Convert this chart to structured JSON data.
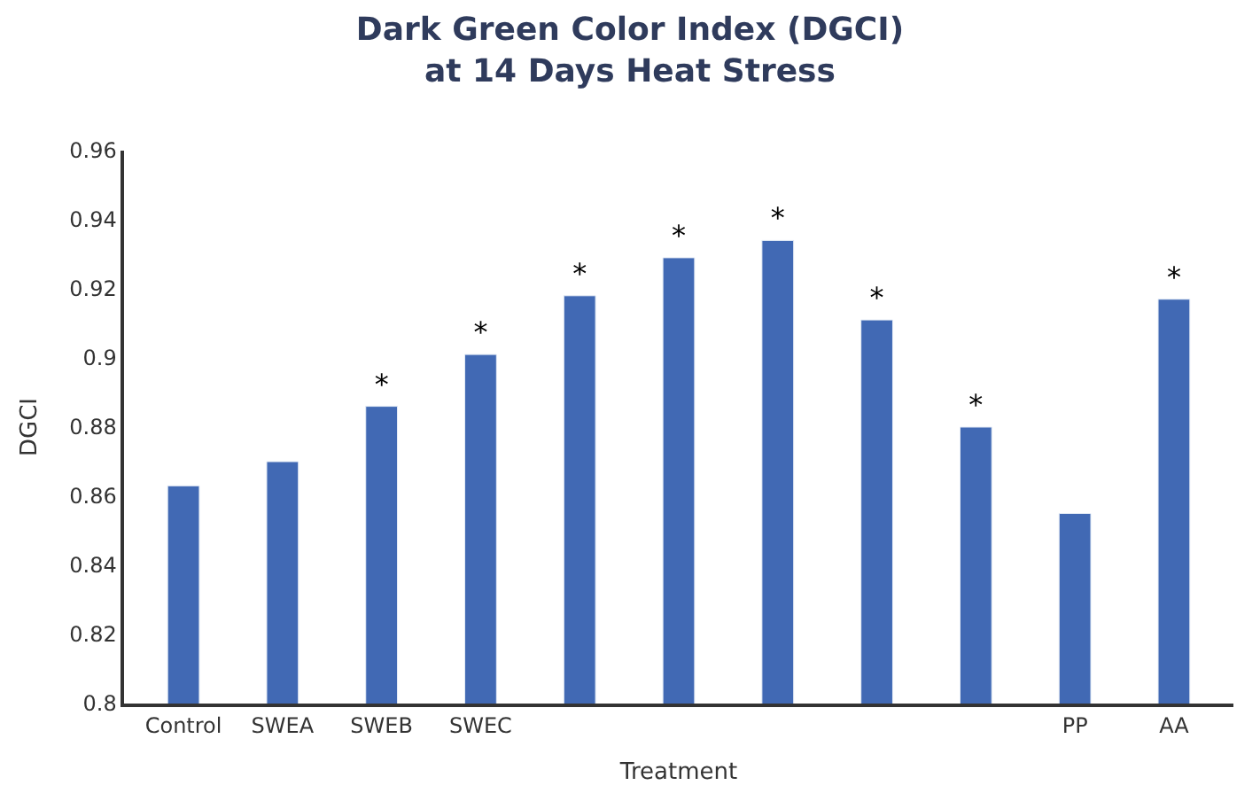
{
  "chart_data": {
    "type": "bar",
    "title": "Dark Green Color Index (DGCI)\nat 14 Days Heat Stress",
    "xlabel": "Treatment",
    "ylabel": "DGCI",
    "categories": [
      "Control",
      "SWEA",
      "SWEB",
      "SWEC",
      null,
      null,
      null,
      null,
      null,
      "PP",
      "AA"
    ],
    "series": [
      {
        "color": "#4169b4",
        "values": [
          0.863,
          0.87,
          0.886,
          0.901,
          0.918,
          0.929,
          0.934,
          0.911,
          0.88,
          0.855,
          0.917
        ],
        "value_labels": [
          null,
          null,
          "*",
          "*",
          "*",
          "*",
          "*",
          "*",
          "*",
          null,
          "*"
        ]
      }
    ],
    "ylim": [
      0.8,
      0.96
    ],
    "yticks": [
      0.8,
      0.82,
      0.84,
      0.86,
      0.88,
      0.9,
      0.92,
      0.94,
      0.96
    ],
    "legend": false
  }
}
